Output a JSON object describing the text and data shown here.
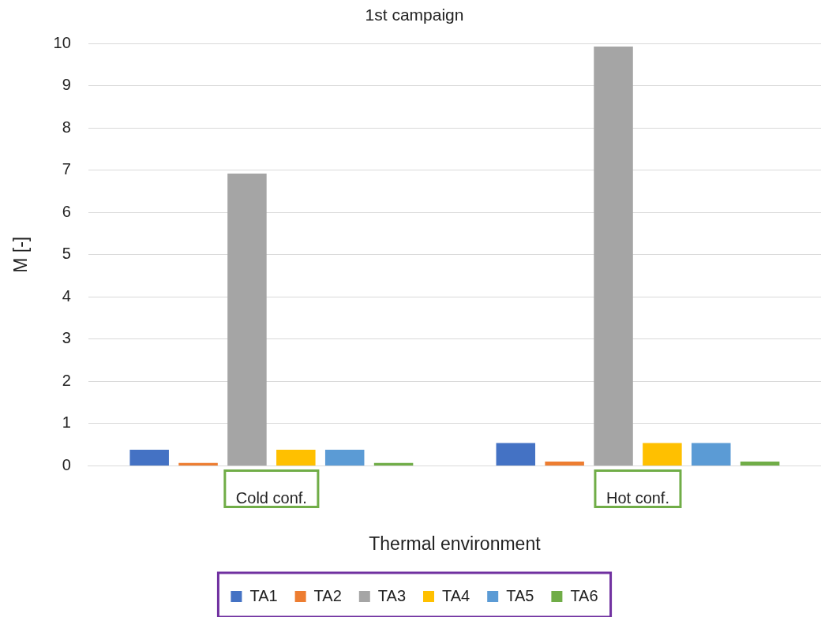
{
  "chart_data": {
    "type": "bar",
    "title": "1st campaign",
    "xlabel": "Thermal environment",
    "ylabel": "M [-]",
    "categories": [
      "Cold conf.",
      "Hot conf."
    ],
    "series": [
      {
        "name": "TA1",
        "color": "#4472c4",
        "values": [
          0.38,
          0.54
        ]
      },
      {
        "name": "TA2",
        "color": "#ed7d31",
        "values": [
          0.07,
          0.1
        ]
      },
      {
        "name": "TA3",
        "color": "#a5a5a5",
        "values": [
          6.92,
          9.93
        ]
      },
      {
        "name": "TA4",
        "color": "#ffc000",
        "values": [
          0.38,
          0.54
        ]
      },
      {
        "name": "TA5",
        "color": "#5b9bd5",
        "values": [
          0.38,
          0.54
        ]
      },
      {
        "name": "TA6",
        "color": "#70ad47",
        "values": [
          0.07,
          0.1
        ]
      }
    ],
    "ylim": [
      0,
      10
    ],
    "yticks": [
      0,
      1,
      2,
      3,
      4,
      5,
      6,
      7,
      8,
      9,
      10
    ],
    "grid": "y",
    "legend": "bottom"
  }
}
